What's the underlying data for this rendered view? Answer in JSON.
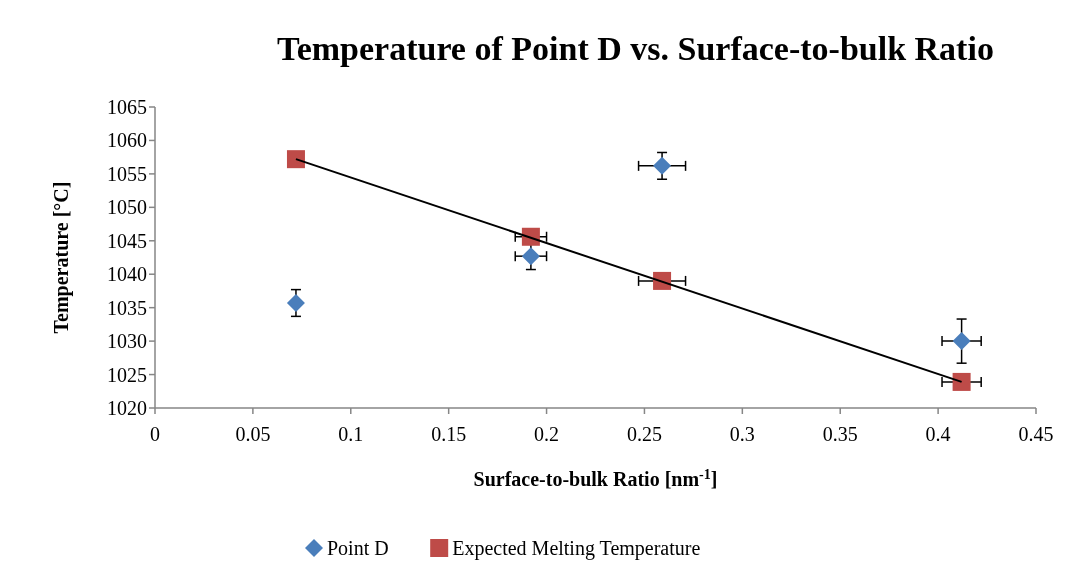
{
  "chart_data": {
    "type": "scatter",
    "title": "Temperature of Point D vs. Surface-to-bulk Ratio",
    "xlabel": "Surface-to-bulk Ratio [nm$^{-1}$]",
    "ylabel": "Temperature [°C]",
    "xlim": [
      0,
      0.45
    ],
    "xticks": [
      0,
      0.05,
      0.1,
      0.15,
      0.2,
      0.25,
      0.3,
      0.35,
      0.4,
      0.45
    ],
    "ylim": [
      1020,
      1065
    ],
    "yticks": [
      1020,
      1025,
      1030,
      1035,
      1040,
      1045,
      1050,
      1055,
      1060,
      1065
    ],
    "grid": false,
    "legend": "bottom",
    "series": [
      {
        "name": "Point D",
        "color": "#4a7ebb",
        "marker": "diamond",
        "x": [
          0.072,
          0.192,
          0.259,
          0.412
        ],
        "values": [
          1035.7,
          1042.7,
          1056.2,
          1030.0
        ],
        "errors": [
          2,
          2,
          2,
          3.3
        ],
        "xerrors": [
          null,
          0.008,
          0.012,
          0.01
        ]
      },
      {
        "name": "Expected Melting Temperature",
        "color": "#be4b48",
        "marker": "square",
        "x": [
          0.072,
          0.192,
          0.259,
          0.412
        ],
        "values": [
          1057.2,
          1045.6,
          1039.0,
          1023.9
        ],
        "xerrors": [
          null,
          0.008,
          0.012,
          0.01
        ]
      },
      {
        "type": "line",
        "color": "#000000",
        "marker": "none",
        "x": [
          0.072,
          0.412
        ],
        "values": [
          1057.2,
          1023.9
        ]
      }
    ]
  }
}
